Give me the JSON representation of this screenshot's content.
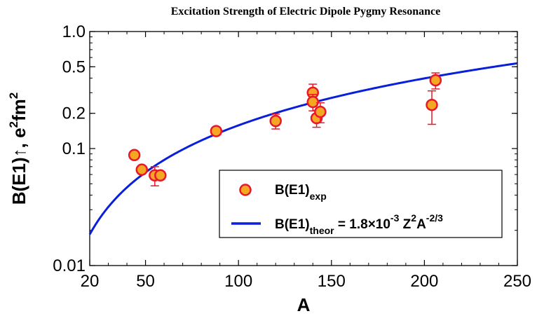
{
  "chart_data": {
    "type": "scatter",
    "title": "Excitation Strength of Electric Dipole Pygmy Resonance",
    "xlabel": "A",
    "ylabel": {
      "main": "B(E1)",
      "arrow": "↑",
      "sep": ", e",
      "sup1": "2",
      "fm": "fm",
      "sup2": "2"
    },
    "xlim": [
      20,
      250
    ],
    "ylim": [
      0.01,
      1.0
    ],
    "yscale": "log",
    "grid": false,
    "legend_position": "bottom-right",
    "xticks": [
      20,
      50,
      100,
      150,
      200,
      250
    ],
    "xtick_labels": [
      "20",
      "50",
      "100",
      "150",
      "200",
      "250"
    ],
    "yticks": [
      0.01,
      0.1,
      0.2,
      0.5,
      1.0
    ],
    "ytick_labels": [
      "0.01",
      "0.1",
      "0.2",
      "0.5",
      "1.0"
    ],
    "series": [
      {
        "kind": "points",
        "marker_fill": "#f5a623",
        "marker_edge": "#e8182a",
        "points": [
          {
            "x": 44,
            "y": 0.088,
            "err": 0
          },
          {
            "x": 48,
            "y": 0.066,
            "err": 0
          },
          {
            "x": 55,
            "y": 0.059,
            "err": 0.011
          },
          {
            "x": 58,
            "y": 0.059,
            "err": 0
          },
          {
            "x": 88,
            "y": 0.141,
            "err": 0
          },
          {
            "x": 120,
            "y": 0.172,
            "err": 0.025
          },
          {
            "x": 140,
            "y": 0.3,
            "err": 0.055
          },
          {
            "x": 140,
            "y": 0.25,
            "err": 0.04
          },
          {
            "x": 142,
            "y": 0.182,
            "err": 0.03
          },
          {
            "x": 144,
            "y": 0.206,
            "err": 0.04
          },
          {
            "x": 204,
            "y": 0.236,
            "err": 0.075
          },
          {
            "x": 206,
            "y": 0.383,
            "err": 0.06
          }
        ]
      },
      {
        "kind": "curve",
        "color": "#0a1fd9",
        "formula": "B = 1.8e-3 * Z^2 * A^(-2/3), Z≈A/2.3",
        "coef": 0.00034,
        "exponent": 1.3333333
      }
    ],
    "legend": [
      {
        "label": "B(E1)",
        "sub": "exp"
      },
      {
        "label": "B(E1)",
        "sub": "theor",
        "eq": " = 1.8×10",
        "sup1": "-3",
        "z": " Z",
        "sup2": "2",
        "a": "A",
        "sup3": "-2/3"
      }
    ]
  }
}
